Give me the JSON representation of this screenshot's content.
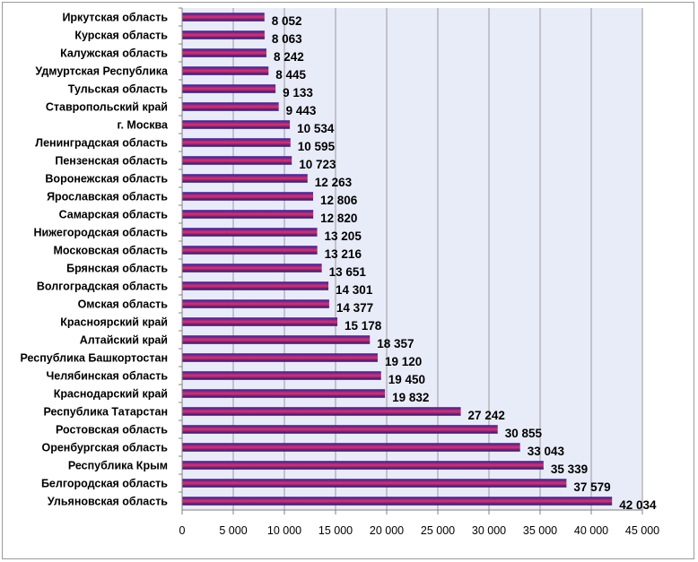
{
  "chart_data": {
    "type": "bar",
    "orientation": "horizontal",
    "categories": [
      "Иркутская область",
      "Курская область",
      "Калужская область",
      "Удмуртская Республика",
      "Тульская область",
      "Ставропольский край",
      "г. Москва",
      "Ленинградская область",
      "Пензенская область",
      "Воронежская область",
      "Ярославская область",
      "Самарская область",
      "Нижегородская область",
      "Московская область",
      "Брянская область",
      "Волгоградская область",
      "Омская область",
      "Красноярский край",
      "Алтайский край",
      "Республика Башкортостан",
      "Челябинская область",
      "Краснодарский край",
      "Республика Татарстан",
      "Ростовская область",
      "Оренбургская область",
      "Республика Крым",
      "Белгородская область",
      "Ульяновская область"
    ],
    "values": [
      8052,
      8063,
      8242,
      8445,
      9133,
      9443,
      10534,
      10595,
      10723,
      12263,
      12806,
      12820,
      13205,
      13216,
      13651,
      14301,
      14377,
      15178,
      18357,
      19120,
      19450,
      19832,
      27242,
      30855,
      33043,
      35339,
      37579,
      42034
    ],
    "value_labels": [
      "8 052",
      "8 063",
      "8 242",
      "8 445",
      "9 133",
      "9 443",
      "10 534",
      "10 595",
      "10 723",
      "12 263",
      "12 806",
      "12 820",
      "13 205",
      "13 216",
      "13 651",
      "14 301",
      "14 377",
      "15 178",
      "18 357",
      "19 120",
      "19 450",
      "19 832",
      "27 242",
      "30 855",
      "33 043",
      "35 339",
      "37 579",
      "42 034"
    ],
    "xlim": [
      0,
      45000
    ],
    "xticks": [
      0,
      5000,
      10000,
      15000,
      20000,
      25000,
      30000,
      35000,
      40000,
      45000
    ],
    "xtick_labels": [
      "0",
      "5 000",
      "10 000",
      "15 000",
      "20 000",
      "25 000",
      "30 000",
      "35 000",
      "40 000",
      "45 000"
    ],
    "grid": true,
    "legend": "none",
    "colors": {
      "plot_background": "#e8ecf8",
      "gridline": "#9a9a9a",
      "bar_top": "#2a1fa0",
      "bar_middle": "#e0306a",
      "bar_bottom": "#1a1580"
    }
  }
}
